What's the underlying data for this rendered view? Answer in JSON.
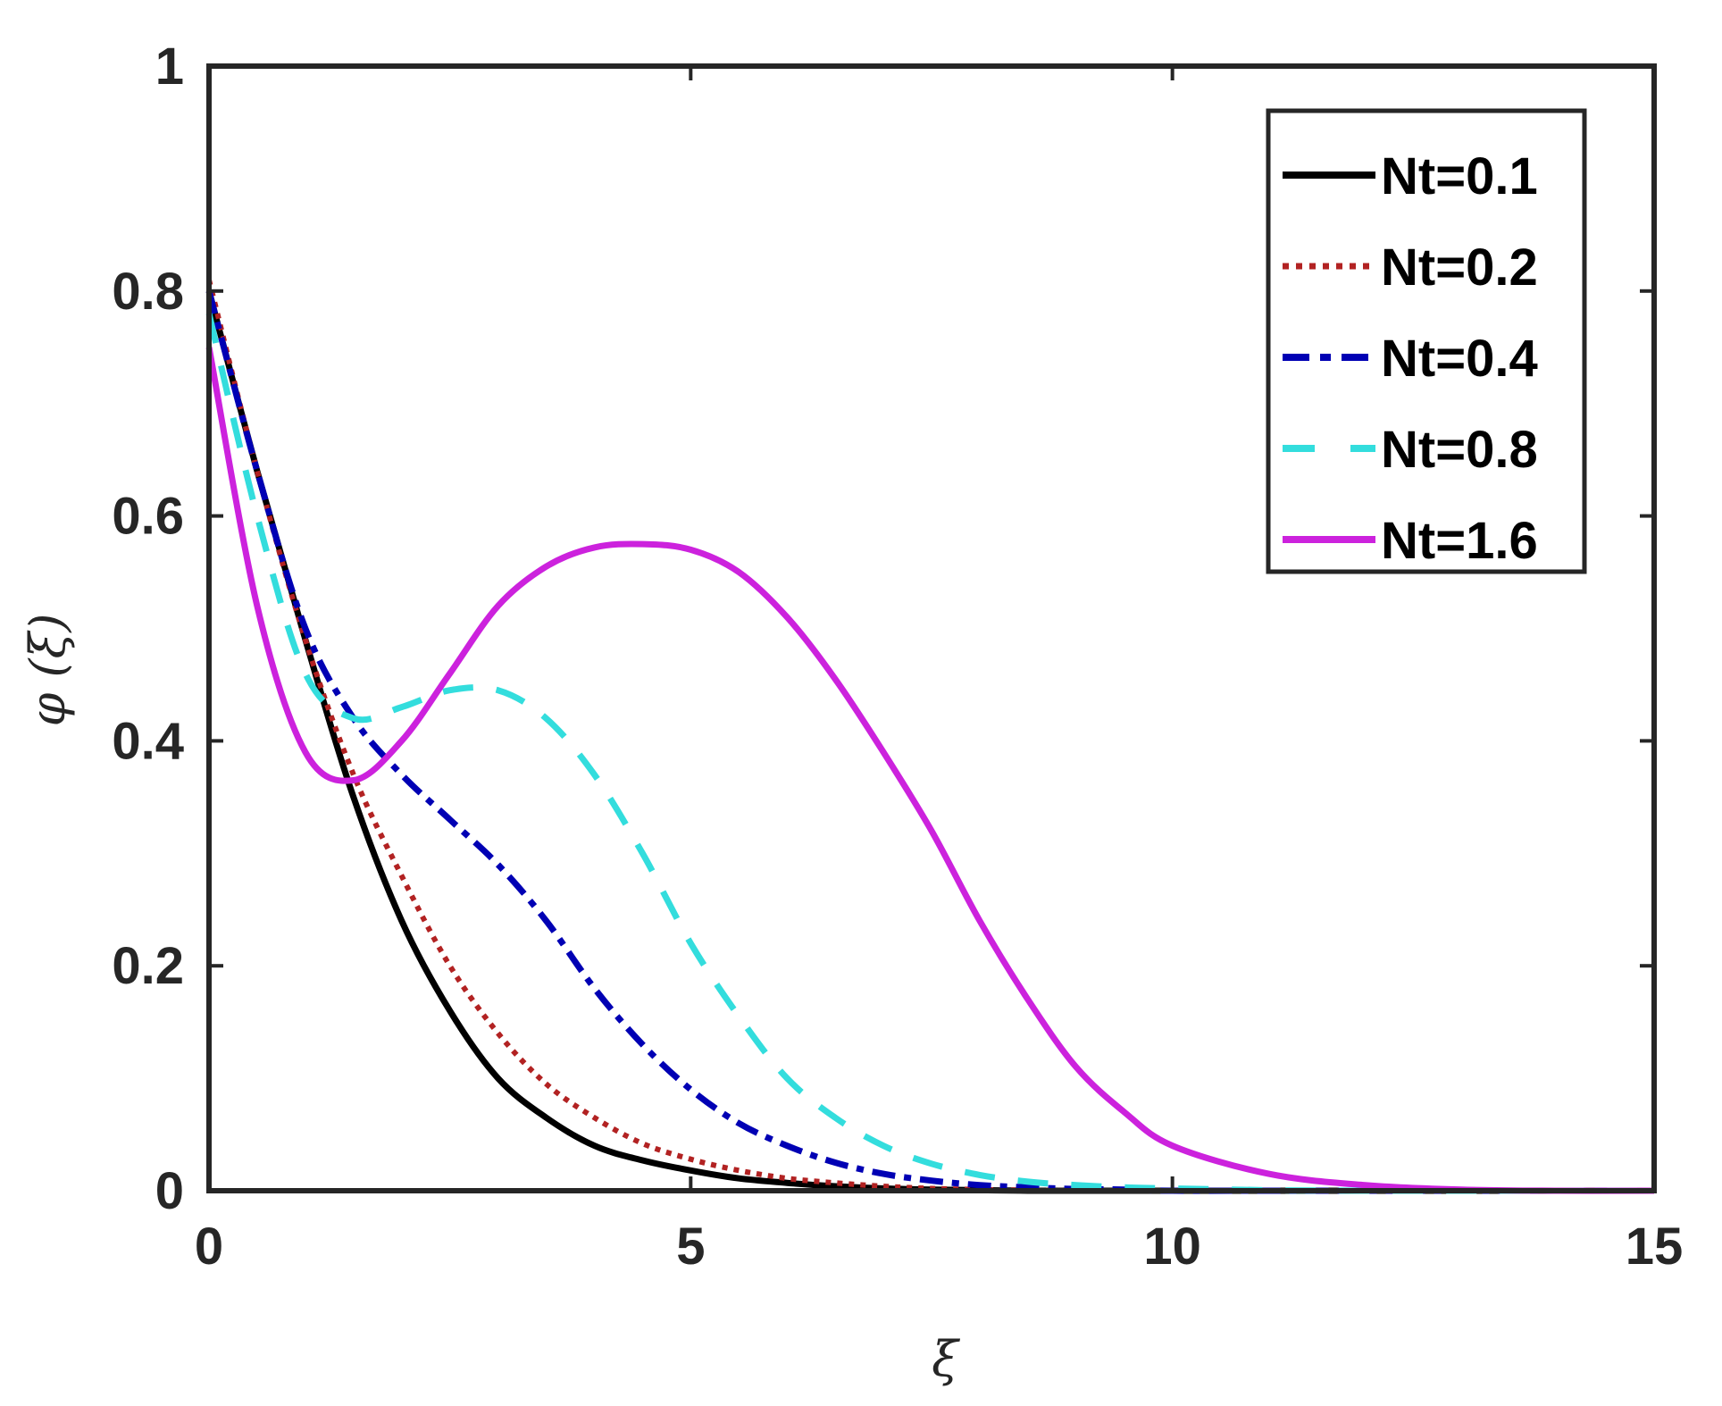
{
  "chart_data": {
    "type": "line",
    "title": "",
    "xlabel": "ξ",
    "ylabel": "φ (ξ)",
    "xlim": [
      0,
      15
    ],
    "ylim": [
      0,
      1
    ],
    "xticks": [
      0,
      5,
      10,
      15
    ],
    "xtick_labels": [
      "0",
      "5",
      "10",
      "15"
    ],
    "yticks": [
      0,
      0.2,
      0.4,
      0.6,
      0.8,
      1
    ],
    "ytick_labels": [
      "0",
      "0.2",
      "0.4",
      "0.6",
      "0.8",
      "1"
    ],
    "grid": false,
    "legend_position": "upper right",
    "x": [
      0,
      0.5,
      1,
      1.5,
      2,
      2.5,
      3,
      3.5,
      4,
      4.5,
      5,
      5.5,
      6,
      6.5,
      7,
      7.5,
      8,
      8.5,
      9,
      9.5,
      10,
      11,
      12,
      13,
      14,
      15
    ],
    "series": [
      {
        "name": "Nt=0.1",
        "color": "#000000",
        "dash": "solid",
        "values": [
          0.8,
          0.64,
          0.49,
          0.35,
          0.24,
          0.16,
          0.1,
          0.065,
          0.04,
          0.027,
          0.018,
          0.011,
          0.007,
          0.004,
          0.002,
          0.001,
          0.0005,
          0,
          0,
          0,
          0,
          0,
          0,
          0,
          0,
          0
        ]
      },
      {
        "name": "Nt=0.2",
        "color": "#b22222",
        "dash": "dotted",
        "values": [
          0.81,
          0.64,
          0.49,
          0.37,
          0.28,
          0.2,
          0.14,
          0.095,
          0.065,
          0.042,
          0.028,
          0.018,
          0.011,
          0.007,
          0.004,
          0.002,
          0.001,
          0.0005,
          0,
          0,
          0,
          0,
          0,
          0,
          0,
          0
        ]
      },
      {
        "name": "Nt=0.4",
        "color": "#0000b4",
        "dash": "dashdot",
        "values": [
          0.8,
          0.64,
          0.5,
          0.42,
          0.37,
          0.33,
          0.29,
          0.24,
          0.18,
          0.13,
          0.09,
          0.06,
          0.04,
          0.025,
          0.015,
          0.009,
          0.005,
          0.003,
          0.0015,
          0.001,
          0,
          0,
          0,
          0,
          0,
          0
        ]
      },
      {
        "name": "Nt=0.8",
        "color": "#33dddd",
        "dash": "dashed",
        "values": [
          0.78,
          0.6,
          0.46,
          0.42,
          0.43,
          0.445,
          0.445,
          0.42,
          0.37,
          0.3,
          0.22,
          0.155,
          0.1,
          0.065,
          0.04,
          0.024,
          0.014,
          0.008,
          0.005,
          0.003,
          0.002,
          0.0005,
          0,
          0,
          0,
          0
        ]
      },
      {
        "name": "Nt=1.6",
        "color": "#cc22dd",
        "dash": "solid",
        "values": [
          0.75,
          0.52,
          0.39,
          0.365,
          0.4,
          0.46,
          0.52,
          0.555,
          0.572,
          0.575,
          0.57,
          0.55,
          0.51,
          0.455,
          0.39,
          0.32,
          0.24,
          0.17,
          0.11,
          0.07,
          0.04,
          0.015,
          0.005,
          0.001,
          0,
          0
        ]
      }
    ]
  },
  "legend": {
    "items": [
      "Nt=0.1",
      "Nt=0.2",
      "Nt=0.4",
      "Nt=0.8",
      "Nt=1.6"
    ]
  }
}
